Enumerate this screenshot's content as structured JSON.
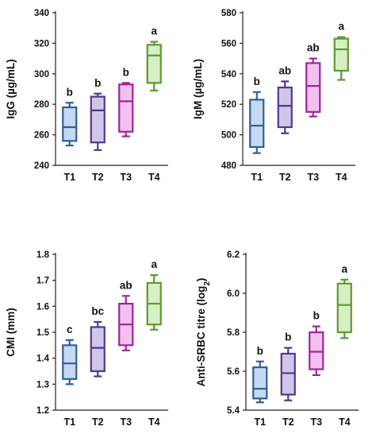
{
  "figure_colors": {
    "T1": {
      "stroke": "#2f5e9e",
      "fill": "#c5d9f1"
    },
    "T2": {
      "stroke": "#4b3b8f",
      "fill": "#d1c6e8"
    },
    "T3": {
      "stroke": "#a0249a",
      "fill": "#f3c1ef"
    },
    "T4": {
      "stroke": "#5b9a2e",
      "fill": "#d7efc4"
    }
  },
  "chart_data": [
    {
      "type": "box",
      "ylabel": "IgG (µg/mL)",
      "ylim": [
        240,
        340
      ],
      "yticks": [
        "240",
        "260",
        "280",
        "300",
        "320",
        "340"
      ],
      "categories": [
        "T1",
        "T2",
        "T3",
        "T4"
      ],
      "boxes": [
        {
          "min": 253,
          "q1": 256,
          "median": 265,
          "q3": 278,
          "max": 281,
          "sig": "b"
        },
        {
          "min": 250,
          "q1": 255,
          "median": 276,
          "q3": 285,
          "max": 287,
          "sig": "b"
        },
        {
          "min": 259,
          "q1": 262,
          "median": 282,
          "q3": 293,
          "max": 294,
          "sig": "b"
        },
        {
          "min": 289,
          "q1": 294,
          "median": 312,
          "q3": 319,
          "max": 321,
          "sig": "a"
        }
      ]
    },
    {
      "type": "box",
      "ylabel": "IgM (µg/mL)",
      "ylim": [
        480,
        580
      ],
      "yticks": [
        "480",
        "500",
        "520",
        "540",
        "560",
        "580"
      ],
      "categories": [
        "T1",
        "T2",
        "T3",
        "T4"
      ],
      "boxes": [
        {
          "min": 488,
          "q1": 492,
          "median": 506,
          "q3": 523,
          "max": 528,
          "sig": "b"
        },
        {
          "min": 501,
          "q1": 505,
          "median": 519,
          "q3": 531,
          "max": 535,
          "sig": "ab"
        },
        {
          "min": 512,
          "q1": 515,
          "median": 532,
          "q3": 547,
          "max": 550,
          "sig": "ab"
        },
        {
          "min": 536,
          "q1": 542,
          "median": 556,
          "q3": 563,
          "max": 564,
          "sig": "a"
        }
      ]
    },
    {
      "type": "box",
      "ylabel": "CMI (mm)",
      "ylim": [
        1.2,
        1.8
      ],
      "yticks": [
        "1.2",
        "1.3",
        "1.4",
        "1.5",
        "1.6",
        "1.7",
        "1.8"
      ],
      "categories": [
        "T1",
        "T2",
        "T3",
        "T4"
      ],
      "boxes": [
        {
          "min": 1.3,
          "q1": 1.32,
          "median": 1.38,
          "q3": 1.45,
          "max": 1.47,
          "sig": "c"
        },
        {
          "min": 1.33,
          "q1": 1.35,
          "median": 1.44,
          "q3": 1.52,
          "max": 1.54,
          "sig": "bc"
        },
        {
          "min": 1.43,
          "q1": 1.45,
          "median": 1.53,
          "q3": 1.61,
          "max": 1.64,
          "sig": "ab"
        },
        {
          "min": 1.51,
          "q1": 1.53,
          "median": 1.61,
          "q3": 1.69,
          "max": 1.72,
          "sig": "a"
        }
      ]
    },
    {
      "type": "box",
      "ylabel": "Anti-SRBC titre (log",
      "ylabel_sub": "2",
      "ylabel_close": ")",
      "ylim": [
        5.4,
        6.2
      ],
      "yticks": [
        "5.4",
        "5.6",
        "5.8",
        "6.0",
        "6.2"
      ],
      "categories": [
        "T1",
        "T2",
        "T3",
        "T4"
      ],
      "boxes": [
        {
          "min": 5.44,
          "q1": 5.46,
          "median": 5.51,
          "q3": 5.62,
          "max": 5.65,
          "sig": "b"
        },
        {
          "min": 5.45,
          "q1": 5.48,
          "median": 5.59,
          "q3": 5.69,
          "max": 5.72,
          "sig": "b"
        },
        {
          "min": 5.58,
          "q1": 5.61,
          "median": 5.7,
          "q3": 5.8,
          "max": 5.83,
          "sig": "b"
        },
        {
          "min": 5.77,
          "q1": 5.8,
          "median": 5.94,
          "q3": 6.05,
          "max": 6.07,
          "sig": "a"
        }
      ]
    }
  ]
}
